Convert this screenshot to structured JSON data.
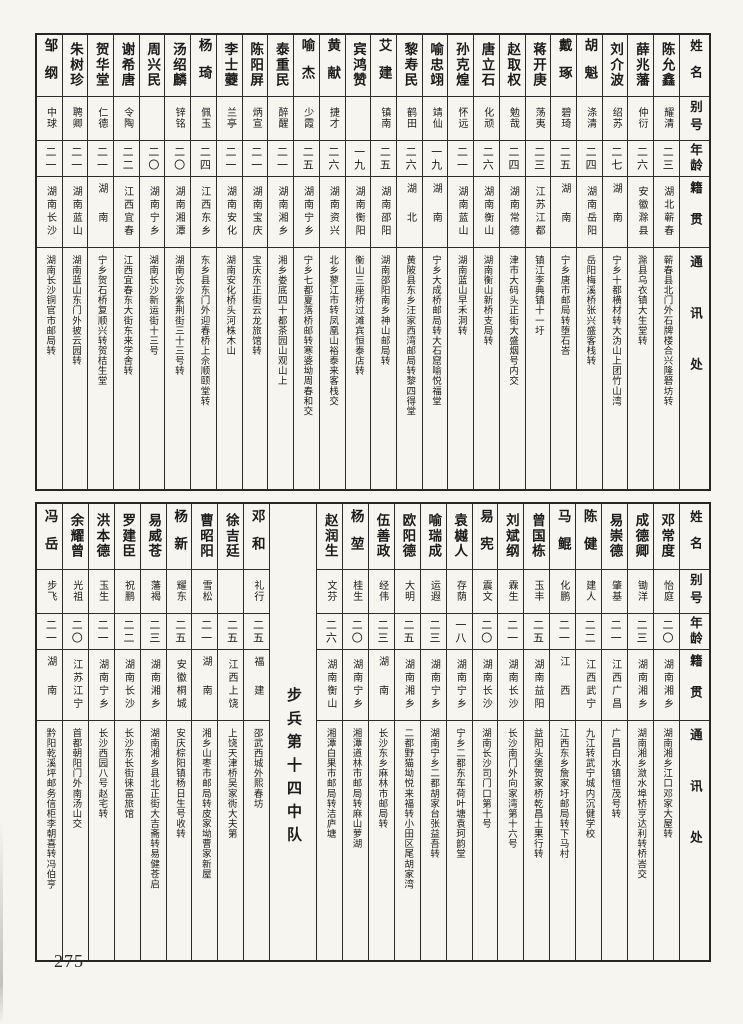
{
  "page": {
    "number": "275"
  },
  "headers": {
    "name": "姓名",
    "alias": "别号",
    "age": "年龄",
    "origin": "籍贯",
    "address": "通讯处"
  },
  "tables": [
    {
      "entries": [
        {
          "name": "陈允鑫",
          "alias": "耀清",
          "age": "二三",
          "origin": "湖北蕲春",
          "address": "蕲春县北门外石牌楼合兴隆砮坊转"
        },
        {
          "name": "薛兆藩",
          "alias": "仲衍",
          "age": "二六",
          "origin": "安徽滁县",
          "address": "滁县乌衣镇大生堂转"
        },
        {
          "name": "刘介波",
          "alias": "绍苏",
          "age": "二七",
          "origin": "湖南",
          "address": "宁乡十都横材转大沩山上团竹山湾"
        },
        {
          "name": "胡魁",
          "alias": "涤清",
          "age": "二四",
          "origin": "湖南岳阳",
          "address": "岳阳梅溪桥张兴盛客栈转"
        },
        {
          "name": "戴琢",
          "alias": "碧琦",
          "age": "二五",
          "origin": "湖南",
          "address": "宁乡唐市邮局转堕石峇"
        },
        {
          "name": "蒋开庚",
          "alias": "荡夷",
          "age": "二三",
          "origin": "江苏江都",
          "address": "镇江李典镇十一圩"
        },
        {
          "name": "赵取权",
          "alias": "勉哉",
          "age": "二四",
          "origin": "湖南常德",
          "address": "津市大码头正街大盛烟号内交"
        },
        {
          "name": "唐立石",
          "alias": "化顽",
          "age": "二六",
          "origin": "湖南衡山",
          "address": "湖南衡山新桥支局转"
        },
        {
          "name": "孙克煌",
          "alias": "怀远",
          "age": "二一",
          "origin": "湖南蓝山",
          "address": "湖南蓝山早禾洞转"
        },
        {
          "name": "喻忠翊",
          "alias": "靖仙",
          "age": "一九",
          "origin": "湖南",
          "address": "宁乡大成桥邮局转大石窟喻悦福堂"
        },
        {
          "name": "黎寿民",
          "alias": "鹤田",
          "age": "二六",
          "origin": "湖北",
          "address": "黄陂县东乡汪家西湾邮局转黎四得堂"
        },
        {
          "name": "艾建",
          "alias": "镇南",
          "age": "二五",
          "origin": "湖南邵阳",
          "address": "湖南邵阳南乡神山邮局转"
        },
        {
          "name": "宾鸿赞",
          "alias": "",
          "age": "一九",
          "origin": "湖南衡阳",
          "address": "衡山三座桥过滩宾恒泰店转"
        },
        {
          "name": "黄献",
          "alias": "捷才",
          "age": "二六",
          "origin": "湖南资兴",
          "address": "北乡蓼江市转凤凰山裕泰来客栈交"
        },
        {
          "name": "喻杰",
          "alias": "少霞",
          "age": "二五",
          "origin": "湖南宁乡",
          "address": "宁乡七都夏落桥邮转寒婆坳周春和交"
        },
        {
          "name": "泰重民",
          "alias": "醉醒",
          "age": "二一",
          "origin": "湖南湘乡",
          "address": "湘乡娄底四十都茶园山观山上"
        },
        {
          "name": "陈阳屏",
          "alias": "炳宣",
          "age": "二一",
          "origin": "湖南宝庆",
          "address": "宝庆东正街云龙旅馆转"
        },
        {
          "name": "李士蘷",
          "alias": "兰亭",
          "age": "二一",
          "origin": "湖南安化",
          "address": "湖南安化桥头河株木山"
        },
        {
          "name": "杨琦",
          "alias": "佩玉",
          "age": "二四",
          "origin": "江西东乡",
          "address": "东乡县东门外迎春桥上佘顺颐堂转"
        },
        {
          "name": "汤绍麟",
          "alias": "锌铭",
          "age": "二〇",
          "origin": "湖南湘潭",
          "address": "湖南长沙紫荆街三十三号转"
        },
        {
          "name": "周兴民",
          "alias": "",
          "age": "二〇",
          "origin": "湖南宁乡",
          "address": "湖南长沙新运街十三号"
        },
        {
          "name": "谢希唐",
          "alias": "令陶",
          "age": "二二",
          "origin": "江西宜春",
          "address": "江西宜春东大街东来学舍转"
        },
        {
          "name": "贺华堂",
          "alias": "仁德",
          "age": "二一",
          "origin": "湖南",
          "address": "宁乡贺石桥复顺兴转贺桔生堂"
        },
        {
          "name": "朱树珍",
          "alias": "聘卿",
          "age": "二一",
          "origin": "湖南蓝山",
          "address": "湖南蓝山东门外披云园转"
        },
        {
          "name": "邹纲",
          "alias": "中球",
          "age": "二一",
          "origin": "湖南长沙",
          "address": "湖南长沙铜官市邮局转"
        }
      ]
    },
    {
      "entries": [
        {
          "name": "邓常度",
          "alias": "怡庭",
          "age": "二〇",
          "origin": "湖南湘乡",
          "address": "湖南湘乡江口邓家大屋转"
        },
        {
          "name": "成德卿",
          "alias": "锄洋",
          "age": "二三",
          "origin": "湖南湘乡",
          "address": "湖南湘乡潋水埠桥亨达利转桥峇交"
        },
        {
          "name": "易崇德",
          "alias": "肇基",
          "age": "二一",
          "origin": "江西广昌",
          "address": "广昌白水镇恒茂号转"
        },
        {
          "name": "陈健",
          "alias": "建人",
          "age": "二二",
          "origin": "江西武宁",
          "address": "九江转武宁城内沉健学校"
        },
        {
          "name": "马鲲",
          "alias": "化鹏",
          "age": "二一",
          "origin": "江西",
          "address": "江西东乡詹家圩邮局转下马村"
        },
        {
          "name": "曾国栋",
          "alias": "玉丰",
          "age": "二五",
          "origin": "湖南益阳",
          "address": "益阳头堡贺家桥乾昌土果行转"
        },
        {
          "name": "刘斌纲",
          "alias": "霖生",
          "age": "二一",
          "origin": "湖南长沙",
          "address": "长沙南门外向家湾第十六号"
        },
        {
          "name": "易宪",
          "alias": "震文",
          "age": "二〇",
          "origin": "湖南长沙",
          "address": "湖南长沙司门口第十号"
        },
        {
          "name": "袁樾人",
          "alias": "存荫",
          "age": "一八",
          "origin": "湖南宁乡",
          "address": "宁乡二都东车荷叶塘袁珂韵堂"
        },
        {
          "name": "喻瑞成",
          "alias": "运遐",
          "age": "二三",
          "origin": "湖南宁乡",
          "address": "湖南宁乡二都胡家台张益吾转"
        },
        {
          "name": "欧阳德",
          "alias": "大明",
          "age": "二五",
          "origin": "湖南湘乡",
          "address": "二都野猫坳悦来福转小田区尾胡家湾"
        },
        {
          "name": "伍善政",
          "alias": "经伟",
          "age": "二三",
          "origin": "湖南",
          "address": "长沙东乡麻林市邮局转"
        },
        {
          "name": "杨堃",
          "alias": "桂生",
          "age": "二〇",
          "origin": "湖南宁乡",
          "address": "湘潭道林市邮局转麻山萝湖"
        },
        {
          "name": "赵润生",
          "alias": "文芬",
          "age": "二六",
          "origin": "湖南衡山",
          "address": "湘潭白果市邮局转洁庐塘"
        },
        {
          "section": "步兵第十四中队"
        },
        {
          "name": "邓和",
          "alias": "礼行",
          "age": "二五",
          "origin": "福建",
          "address": "邵武西城外熙春坊"
        },
        {
          "name": "徐吉廷",
          "alias": "",
          "age": "二五",
          "origin": "江西上饶",
          "address": "上饶天津桥吴家衖大夫第"
        },
        {
          "name": "曹昭阳",
          "alias": "雪松",
          "age": "二一",
          "origin": "湖南",
          "address": "湘乡山枣市邮局转皮家坳曹家新屋"
        },
        {
          "name": "杨新",
          "alias": "耀东",
          "age": "二五",
          "origin": "安徽桐城",
          "address": "安庆棕阳镇杨日生号收转"
        },
        {
          "name": "易威苍",
          "alias": "藩褐",
          "age": "二三",
          "origin": "湖南湘乡",
          "address": "湖南湘乡县北正街大吉斋转易健苍启"
        },
        {
          "name": "罗建臣",
          "alias": "祝鹏",
          "age": "二二",
          "origin": "湖南长沙",
          "address": "长沙东长街徕富旅馆"
        },
        {
          "name": "洪本德",
          "alias": "玉生",
          "age": "二一",
          "origin": "湖南宁乡",
          "address": "长沙西园八号赵宅转"
        },
        {
          "name": "余耀曾",
          "alias": "光祖",
          "age": "二〇",
          "origin": "江苏江宁",
          "address": "首都朝阳门外南汤山交"
        },
        {
          "name": "冯岳",
          "alias": "步飞",
          "age": "二一",
          "origin": "湖南",
          "address": "黔阳乾溪坪邮务信柜李朝喜转冯伯亨"
        }
      ]
    }
  ]
}
